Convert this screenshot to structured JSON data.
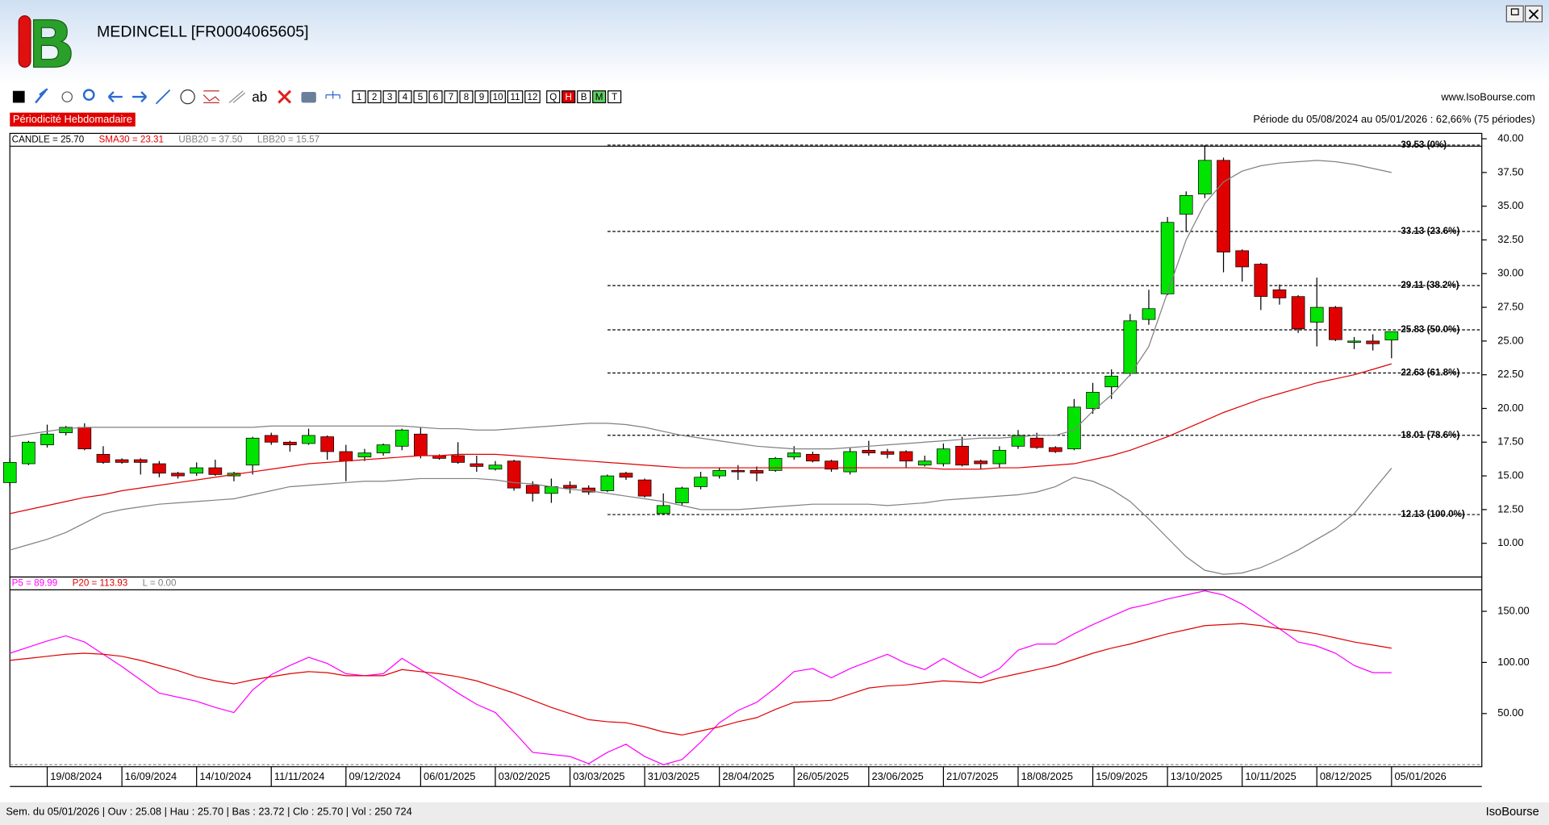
{
  "window": {
    "title": "MEDINCELL [FR0004065605]"
  },
  "toolbar": {
    "periods": [
      "1",
      "2",
      "3",
      "4",
      "5",
      "6",
      "7",
      "8",
      "9",
      "10",
      "11",
      "12",
      "Q",
      "H",
      "B",
      "M",
      "T"
    ],
    "site": "www.IsoBourse.com"
  },
  "periodicity": "Périodicité Hebdomadaire",
  "period_range": "Période du 05/08/2024 au 05/01/2026 : 62,66% (75 périodes)",
  "chart_data": [
    {
      "type": "candlestick",
      "categories": [
        null,
        null,
        "19/08/2024",
        null,
        null,
        null,
        "16/09/2024",
        null,
        null,
        null,
        "14/10/2024",
        null,
        null,
        null,
        "11/11/2024",
        null,
        null,
        null,
        "09/12/2024",
        null,
        null,
        null,
        "06/01/2025",
        null,
        null,
        null,
        "03/02/2025",
        null,
        null,
        null,
        "03/03/2025",
        null,
        null,
        null,
        "31/03/2025",
        null,
        null,
        null,
        "28/04/2025",
        null,
        null,
        null,
        "26/05/2025",
        null,
        null,
        null,
        "23/06/2025",
        null,
        null,
        null,
        "21/07/2025",
        null,
        null,
        null,
        "18/08/2025",
        null,
        null,
        null,
        "15/09/2025",
        null,
        null,
        null,
        "13/10/2025",
        null,
        null,
        null,
        "10/11/2025",
        null,
        null,
        null,
        "08/12/2025",
        null,
        null,
        null,
        "05/01/2026"
      ],
      "open": [
        14.5,
        15.9,
        17.3,
        18.2,
        18.6,
        16.6,
        16.2,
        16.2,
        15.9,
        15.2,
        15.2,
        15.6,
        15.0,
        15.8,
        18.0,
        17.5,
        17.4,
        17.9,
        16.8,
        16.4,
        16.7,
        17.2,
        18.1,
        16.5,
        16.5,
        15.9,
        15.5,
        16.1,
        14.3,
        13.7,
        14.3,
        14.1,
        13.9,
        15.2,
        14.7,
        12.2,
        13.0,
        14.2,
        15.0,
        15.4,
        15.4,
        15.4,
        16.4,
        16.6,
        16.1,
        15.3,
        16.9,
        16.8,
        16.8,
        15.8,
        15.9,
        17.2,
        16.1,
        15.9,
        17.2,
        17.8,
        17.1,
        17.0,
        20.0,
        21.6,
        22.6,
        26.6,
        28.5,
        34.4,
        35.9,
        38.4,
        31.7,
        30.7,
        28.8,
        28.3,
        26.4,
        27.5,
        24.9,
        25.0,
        25.08
      ],
      "high": [
        16.3,
        17.6,
        18.8,
        18.7,
        18.9,
        17.2,
        16.3,
        16.3,
        16.1,
        15.3,
        16.0,
        16.2,
        15.3,
        17.9,
        18.2,
        17.6,
        18.5,
        18.0,
        17.3,
        17.0,
        17.4,
        18.5,
        18.6,
        16.6,
        17.5,
        16.5,
        16.1,
        16.2,
        14.6,
        14.8,
        14.6,
        14.3,
        15.1,
        15.3,
        14.8,
        13.7,
        14.2,
        15.3,
        15.6,
        15.8,
        15.7,
        16.4,
        17.2,
        16.8,
        16.2,
        17.1,
        17.6,
        17.0,
        16.9,
        16.5,
        17.4,
        17.9,
        16.2,
        17.2,
        18.4,
        18.2,
        17.2,
        20.7,
        21.9,
        22.9,
        27.0,
        28.8,
        34.2,
        36.1,
        39.53,
        38.6,
        31.8,
        30.8,
        29.2,
        28.4,
        29.7,
        27.6,
        25.3,
        25.5,
        25.7
      ],
      "low": [
        14.2,
        15.8,
        17.1,
        18.0,
        16.9,
        15.9,
        15.9,
        15.1,
        14.9,
        14.8,
        15.0,
        15.0,
        14.6,
        15.1,
        17.3,
        16.8,
        17.3,
        16.2,
        14.6,
        16.1,
        16.5,
        16.9,
        16.3,
        16.2,
        15.9,
        15.3,
        15.4,
        13.9,
        13.1,
        13.0,
        13.7,
        13.6,
        13.8,
        14.7,
        13.4,
        12.13,
        12.8,
        14.0,
        14.8,
        14.7,
        14.6,
        15.3,
        16.2,
        16.0,
        15.3,
        15.1,
        16.5,
        16.3,
        15.6,
        15.7,
        15.7,
        15.7,
        15.5,
        15.6,
        17.0,
        17.0,
        16.7,
        16.9,
        19.6,
        20.7,
        22.4,
        26.2,
        28.4,
        33.1,
        35.6,
        30.1,
        29.4,
        27.3,
        27.7,
        25.6,
        24.6,
        25.0,
        24.4,
        24.3,
        23.72
      ],
      "close": [
        16.0,
        17.5,
        18.1,
        18.6,
        17.0,
        16.0,
        16.0,
        16.0,
        15.2,
        15.0,
        15.6,
        15.1,
        15.2,
        17.8,
        17.5,
        17.3,
        18.0,
        16.8,
        16.1,
        16.7,
        17.3,
        18.4,
        16.5,
        16.3,
        16.0,
        15.7,
        15.8,
        14.1,
        13.7,
        14.2,
        14.1,
        13.8,
        15.0,
        14.9,
        13.5,
        12.8,
        14.1,
        14.9,
        15.4,
        15.3,
        15.2,
        16.3,
        16.7,
        16.1,
        15.5,
        16.8,
        16.7,
        16.6,
        16.1,
        16.1,
        17.0,
        15.8,
        15.9,
        16.9,
        18.0,
        17.1,
        16.8,
        20.1,
        21.2,
        22.4,
        26.5,
        27.4,
        33.8,
        35.8,
        38.4,
        31.6,
        30.5,
        28.3,
        28.2,
        25.9,
        27.5,
        25.1,
        25.0,
        24.8,
        25.7
      ],
      "up_color": "#00e400",
      "down_color": "#e00000",
      "candle_label": "CANDLE = 25.70",
      "series": [
        {
          "label": "SMA30 = 23.31",
          "color": "#e00000",
          "values": [
            12.2,
            12.5,
            12.8,
            13.1,
            13.4,
            13.6,
            13.9,
            14.1,
            14.3,
            14.5,
            14.7,
            14.9,
            15.1,
            15.3,
            15.5,
            15.7,
            15.9,
            16.0,
            16.1,
            16.2,
            16.3,
            16.4,
            16.5,
            16.5,
            16.6,
            16.6,
            16.6,
            16.5,
            16.4,
            16.3,
            16.2,
            16.1,
            16.0,
            15.9,
            15.8,
            15.7,
            15.6,
            15.6,
            15.6,
            15.6,
            15.6,
            15.6,
            15.6,
            15.6,
            15.6,
            15.6,
            15.6,
            15.6,
            15.6,
            15.6,
            15.5,
            15.5,
            15.5,
            15.6,
            15.6,
            15.7,
            15.8,
            15.9,
            16.2,
            16.5,
            16.9,
            17.4,
            17.9,
            18.5,
            19.1,
            19.7,
            20.2,
            20.7,
            21.1,
            21.5,
            21.9,
            22.2,
            22.5,
            22.9,
            23.31
          ]
        },
        {
          "label": "UBB20 = 37.50",
          "color": "#808080",
          "values": [
            17.9,
            18.1,
            18.3,
            18.5,
            18.6,
            18.6,
            18.6,
            18.6,
            18.6,
            18.6,
            18.6,
            18.6,
            18.6,
            18.6,
            18.7,
            18.7,
            18.7,
            18.7,
            18.7,
            18.7,
            18.7,
            18.7,
            18.6,
            18.5,
            18.5,
            18.4,
            18.4,
            18.5,
            18.6,
            18.7,
            18.8,
            18.9,
            18.9,
            18.8,
            18.6,
            18.3,
            18.0,
            17.8,
            17.6,
            17.4,
            17.2,
            17.1,
            17.0,
            17.0,
            17.0,
            17.1,
            17.2,
            17.3,
            17.4,
            17.5,
            17.6,
            17.7,
            17.8,
            17.8,
            17.9,
            18.0,
            18.0,
            18.4,
            19.8,
            21.0,
            22.5,
            24.6,
            28.6,
            32.5,
            35.2,
            36.8,
            37.6,
            38.0,
            38.2,
            38.3,
            38.4,
            38.3,
            38.1,
            37.8,
            37.5
          ]
        },
        {
          "label": "LBB20 = 15.57",
          "color": "#808080",
          "values": [
            9.5,
            9.9,
            10.3,
            10.8,
            11.5,
            12.2,
            12.5,
            12.7,
            12.9,
            13.0,
            13.1,
            13.2,
            13.3,
            13.6,
            13.9,
            14.2,
            14.3,
            14.4,
            14.5,
            14.6,
            14.6,
            14.7,
            14.8,
            14.8,
            14.8,
            14.8,
            14.7,
            14.5,
            14.4,
            14.2,
            14.0,
            13.9,
            13.7,
            13.5,
            13.3,
            13.1,
            12.8,
            12.5,
            12.5,
            12.5,
            12.6,
            12.7,
            12.8,
            12.9,
            12.9,
            12.9,
            12.9,
            12.8,
            12.9,
            13.0,
            13.2,
            13.3,
            13.4,
            13.5,
            13.6,
            13.8,
            14.2,
            14.9,
            14.6,
            14.0,
            13.1,
            11.8,
            10.4,
            9.0,
            8.0,
            7.7,
            7.8,
            8.2,
            8.8,
            9.5,
            10.3,
            11.1,
            12.2,
            13.9,
            15.57
          ]
        }
      ],
      "fib_levels": [
        {
          "value": 39.53,
          "label": "39.53 (0%)"
        },
        {
          "value": 33.13,
          "label": "33.13 (23.6%)"
        },
        {
          "value": 29.11,
          "label": "29.11 (38.2%)"
        },
        {
          "value": 25.83,
          "label": "25.83 (50.0%)"
        },
        {
          "value": 22.63,
          "label": "22.63 (61.8%)"
        },
        {
          "value": 18.01,
          "label": "18.01 (78.6%)"
        },
        {
          "value": 12.13,
          "label": "12.13 (100.0%)"
        }
      ],
      "ylim": [
        7.5,
        40.4
      ],
      "yticks": [
        {
          "value": 10,
          "label": "10.00"
        },
        {
          "value": 12.5,
          "label": "12.50"
        },
        {
          "value": 15,
          "label": "15.00"
        },
        {
          "value": 17.5,
          "label": "17.50"
        },
        {
          "value": 20,
          "label": "20.00"
        },
        {
          "value": 22.5,
          "label": "22.50"
        },
        {
          "value": 25,
          "label": "25.00"
        },
        {
          "value": 27.5,
          "label": "27.50"
        },
        {
          "value": 30,
          "label": "30.00"
        },
        {
          "value": 32.5,
          "label": "32.50"
        },
        {
          "value": 35,
          "label": "35.00"
        },
        {
          "value": 37.5,
          "label": "37.50"
        },
        {
          "value": 40,
          "label": "40.00"
        }
      ]
    },
    {
      "type": "line",
      "series": [
        {
          "label": "P5 = 89.99",
          "color": "#ff00ff",
          "values": [
            109,
            115,
            121,
            126,
            120,
            108,
            96,
            83,
            70,
            66,
            62,
            56,
            51,
            73,
            88,
            97,
            105,
            99,
            89,
            87,
            89,
            104,
            93,
            82,
            70,
            59,
            51,
            32,
            12,
            10,
            8,
            1,
            12,
            20,
            8,
            0,
            5,
            22,
            41,
            53,
            61,
            75,
            91,
            94,
            85,
            94,
            101,
            108,
            99,
            93,
            104,
            94,
            85,
            94,
            112,
            118,
            118,
            128,
            137,
            145,
            153,
            157,
            162,
            166,
            170,
            166,
            157,
            145,
            133,
            120,
            116,
            109,
            97,
            90,
            89.99
          ]
        },
        {
          "label": "P20 = 113.93",
          "color": "#e00000",
          "values": [
            102,
            104,
            106,
            108,
            109,
            108,
            106,
            102,
            97,
            92,
            86,
            82,
            79,
            83,
            86,
            89,
            91,
            90,
            87,
            87,
            87,
            93,
            91,
            89,
            86,
            82,
            76,
            70,
            63,
            56,
            50,
            44,
            42,
            41,
            37,
            32,
            29,
            33,
            37,
            42,
            46,
            54,
            61,
            62,
            63,
            69,
            75,
            77,
            78,
            80,
            82,
            81,
            80,
            85,
            89,
            93,
            97,
            103,
            109,
            114,
            118,
            123,
            128,
            132,
            136,
            137,
            138,
            136,
            133,
            131,
            128,
            124,
            120,
            117,
            113.93
          ]
        }
      ],
      "level_label": "L = 0.00",
      "level": 0,
      "ylim": [
        -2,
        171
      ],
      "yticks": [
        {
          "value": 50,
          "label": "50.00"
        },
        {
          "value": 100,
          "label": "100.00"
        },
        {
          "value": 150,
          "label": "150.00"
        }
      ]
    }
  ],
  "status_bar": {
    "text": "Sem. du 05/01/2026 | Ouv : 25.08 | Hau : 25.70 | Bas : 23.72 | Clo : 25.70 | Vol : 250 724",
    "brand": "IsoBourse"
  }
}
